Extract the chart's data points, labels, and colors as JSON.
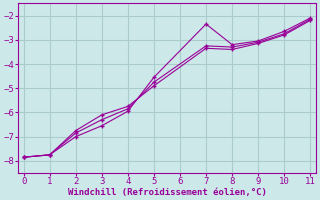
{
  "xlabel": "Windchill (Refroidissement éolien,°C)",
  "bg_color": "#cce8e8",
  "grid_color": "#aacccc",
  "line_color": "#990099",
  "line1_x": [
    0,
    1,
    2,
    3,
    4,
    5,
    7,
    8,
    9,
    10,
    11
  ],
  "line1_y": [
    -7.85,
    -7.75,
    -7.0,
    -6.55,
    -5.95,
    -4.55,
    -2.35,
    -3.2,
    -3.05,
    -2.65,
    -2.1
  ],
  "line2_x": [
    0,
    1,
    2,
    3,
    4,
    5,
    7,
    8,
    9,
    10,
    11
  ],
  "line2_y": [
    -7.85,
    -7.75,
    -6.85,
    -6.3,
    -5.85,
    -4.75,
    -3.25,
    -3.3,
    -3.1,
    -2.75,
    -2.15
  ],
  "line3_x": [
    0,
    1,
    2,
    3,
    4,
    5,
    7,
    8,
    9,
    10,
    11
  ],
  "line3_y": [
    -7.85,
    -7.75,
    -6.75,
    -6.1,
    -5.75,
    -4.9,
    -3.35,
    -3.4,
    -3.15,
    -2.8,
    -2.2
  ],
  "xlim": [
    -0.2,
    11.2
  ],
  "ylim": [
    -8.5,
    -1.5
  ],
  "xticks": [
    0,
    1,
    2,
    3,
    4,
    5,
    6,
    7,
    8,
    9,
    10,
    11
  ],
  "yticks": [
    -8,
    -7,
    -6,
    -5,
    -4,
    -3,
    -2
  ]
}
